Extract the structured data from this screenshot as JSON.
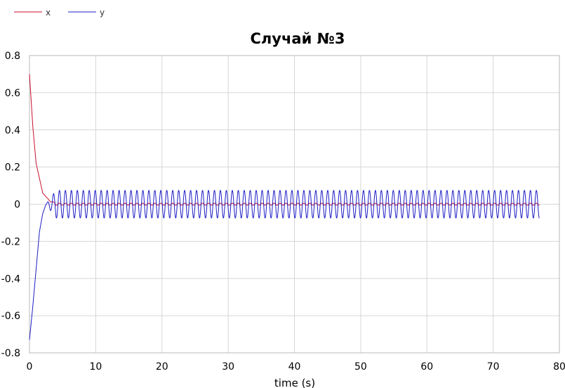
{
  "chart_data": {
    "type": "line",
    "title": "Случай №3",
    "xlabel": "time (s)",
    "ylabel": "",
    "xlim": [
      0,
      80
    ],
    "ylim": [
      -0.8,
      0.8
    ],
    "x_ticks": [
      0,
      10,
      20,
      30,
      40,
      50,
      60,
      70,
      80
    ],
    "x_tick_labels": [
      "0",
      "10",
      "20",
      "30",
      "40",
      "50",
      "60",
      "70",
      "80"
    ],
    "y_ticks": [
      0.8,
      0.6,
      0.4,
      0.2,
      0,
      -0.2,
      -0.4,
      -0.6,
      -0.8
    ],
    "y_tick_labels": [
      "0.8",
      "0.6",
      "0.4",
      "0.2",
      "0",
      "-0.2",
      "-0.4",
      "-0.6",
      "-0.8"
    ],
    "grid": true,
    "legend_position": "top-left",
    "series": [
      {
        "name": "x",
        "color": "#c8102e",
        "x": [
          0,
          0.5,
          1,
          1.5,
          2,
          2.5,
          3,
          4,
          5,
          10,
          20,
          30,
          40,
          50,
          60,
          70,
          77
        ],
        "y": [
          0.7,
          0.42,
          0.22,
          0.14,
          0.06,
          0.04,
          0.02,
          0.0,
          0.0,
          0.0,
          0.0,
          0.0,
          0.0,
          0.0,
          0.0,
          0.0,
          0.0
        ],
        "oscillation": {
          "amplitude": 0.006,
          "period": 0.9,
          "from": 2.5,
          "to": 77
        }
      },
      {
        "name": "y",
        "color": "#1d1dc4",
        "x": [
          0,
          0.5,
          1,
          1.5,
          2,
          2.5,
          3,
          4,
          5,
          10,
          20,
          30,
          40,
          50,
          60,
          70,
          77
        ],
        "y": [
          -0.73,
          -0.55,
          -0.35,
          -0.15,
          -0.05,
          0.0,
          0.0,
          0.0,
          0.0,
          0.0,
          0.0,
          0.0,
          0.0,
          0.0,
          0.0,
          0.0,
          0.0
        ],
        "oscillation": {
          "amplitude": 0.075,
          "period": 0.9,
          "from": 2.5,
          "to": 77
        }
      }
    ]
  }
}
